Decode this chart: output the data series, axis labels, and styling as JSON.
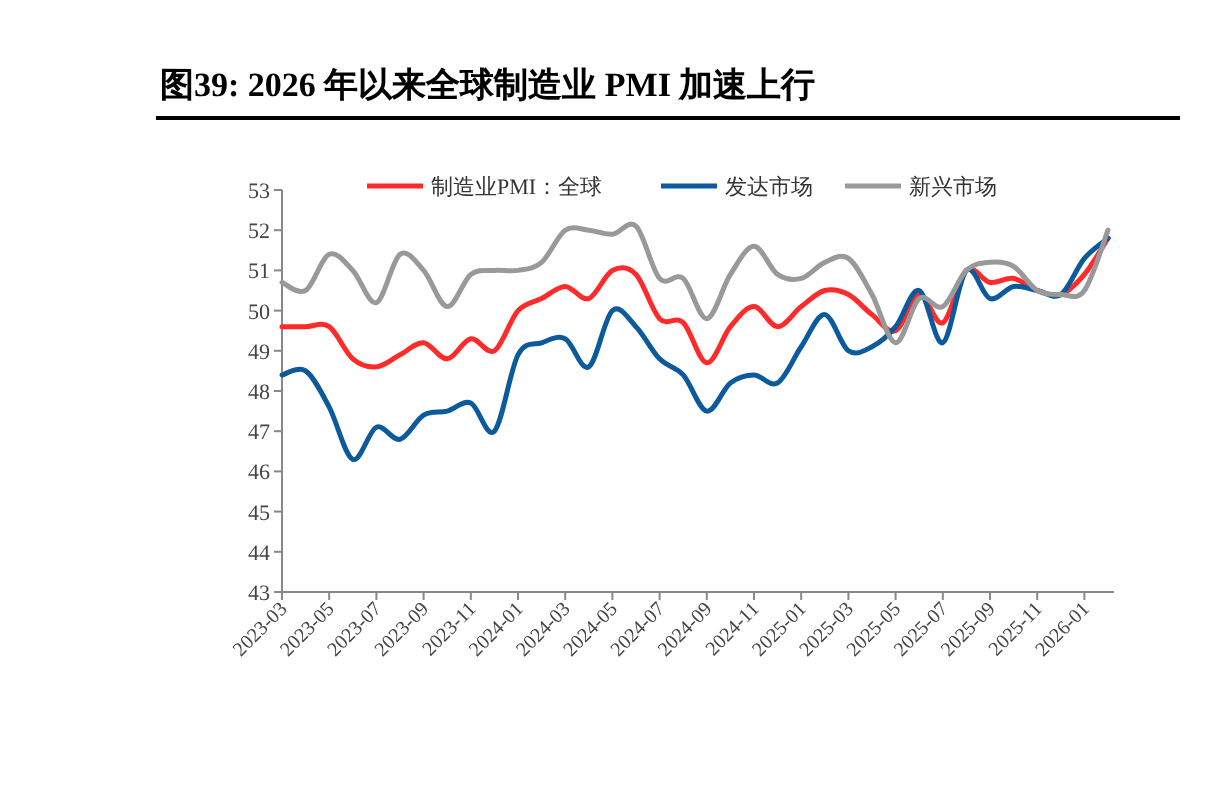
{
  "chart_data": {
    "type": "line",
    "title": "图39:  2026 年以来全球制造业 PMI 加速上行",
    "categories": [
      "2023-03",
      null,
      "2023-05",
      null,
      "2023-07",
      null,
      "2023-09",
      null,
      "2023-11",
      null,
      "2024-01",
      null,
      "2024-03",
      null,
      "2024-05",
      null,
      "2024-07",
      null,
      "2024-09",
      null,
      "2024-11",
      null,
      "2025-01",
      null,
      "2025-03",
      null,
      "2025-05",
      null,
      "2025-07",
      null,
      "2025-09",
      null,
      "2025-11",
      null,
      "2026-01",
      null
    ],
    "series": [
      {
        "name": "制造业PMI：全球",
        "color": "#ff2a2a",
        "values": [
          49.6,
          49.6,
          49.6,
          48.8,
          48.6,
          48.9,
          49.2,
          48.8,
          49.3,
          49.0,
          50.0,
          50.3,
          50.6,
          50.3,
          51.0,
          50.9,
          49.8,
          49.7,
          48.7,
          49.6,
          50.1,
          49.6,
          50.1,
          50.5,
          50.4,
          49.9,
          49.5,
          50.4,
          49.7,
          51.0,
          50.7,
          50.8,
          50.5,
          50.4,
          50.9,
          51.8
        ]
      },
      {
        "name": "发达市场",
        "color": "#0a5a9c",
        "values": [
          48.4,
          48.5,
          47.6,
          46.3,
          47.1,
          46.8,
          47.4,
          47.5,
          47.7,
          47.0,
          48.9,
          49.2,
          49.3,
          48.6,
          50.0,
          49.6,
          48.8,
          48.4,
          47.5,
          48.2,
          48.4,
          48.2,
          49.1,
          49.9,
          49.0,
          49.1,
          49.6,
          50.5,
          49.2,
          51.0,
          50.3,
          50.6,
          50.5,
          50.4,
          51.3,
          51.8
        ]
      },
      {
        "name": "新兴市场",
        "color": "#999999",
        "values": [
          50.7,
          50.5,
          51.4,
          51.0,
          50.2,
          51.4,
          51.0,
          50.1,
          50.9,
          51.0,
          51.0,
          51.2,
          52.0,
          52.0,
          51.9,
          52.1,
          50.8,
          50.8,
          49.8,
          50.9,
          51.6,
          50.9,
          50.8,
          51.2,
          51.3,
          50.4,
          49.2,
          50.3,
          50.1,
          51.0,
          51.2,
          51.1,
          50.5,
          50.4,
          50.5,
          52.0
        ]
      }
    ],
    "ylim": [
      43,
      53
    ],
    "yticks": [
      43,
      44,
      45,
      46,
      47,
      48,
      49,
      50,
      51,
      52,
      53
    ],
    "legend": "top"
  }
}
